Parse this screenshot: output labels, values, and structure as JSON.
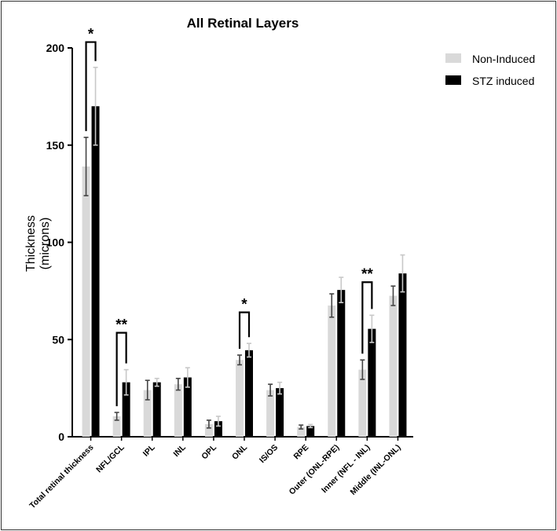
{
  "chart_data": {
    "type": "bar",
    "title": "All Retinal Layers",
    "ylabel_line1": "Thickness",
    "ylabel_line2": "(microns)",
    "xlabel": "",
    "ylim": [
      0,
      200
    ],
    "yticks": [
      0,
      50,
      100,
      150,
      200
    ],
    "grid": false,
    "legend_placement": "top-right",
    "categories": [
      "Total retinal thickness",
      "NFL/GCL",
      "IPL",
      "INL",
      "OPL",
      "ONL",
      "IS/OS",
      "RPE",
      "Outer (ONL-RPE)",
      "Inner (NFL - INL)",
      "Middle (INL-ONL)"
    ],
    "series": [
      {
        "name": "Non-Induced",
        "color": "#d9d9d9",
        "error_color": "#444444",
        "values": [
          139,
          10.5,
          24,
          27,
          6.5,
          39.5,
          24,
          5,
          67.5,
          34.5,
          72.5
        ],
        "errors": [
          15,
          2,
          5,
          3,
          2,
          2.5,
          3,
          1,
          6,
          5,
          5
        ]
      },
      {
        "name": "STZ induced",
        "color": "#000000",
        "error_color": "#c8c8c8",
        "values": [
          170,
          28,
          28,
          30.5,
          8,
          44.5,
          25,
          5.5,
          75.5,
          55.5,
          84
        ],
        "errors": [
          20,
          6.5,
          2,
          5,
          2.5,
          3.5,
          3,
          0.8,
          6.5,
          7,
          9.5
        ]
      }
    ],
    "annotations": [
      {
        "category": 0,
        "label": "*",
        "bracket_value": 203
      },
      {
        "category": 1,
        "label": "**",
        "bracket_value": 53.5
      },
      {
        "category": 5,
        "label": "*",
        "bracket_value": 64
      },
      {
        "category": 9,
        "label": "**",
        "bracket_value": 79.5
      }
    ]
  }
}
